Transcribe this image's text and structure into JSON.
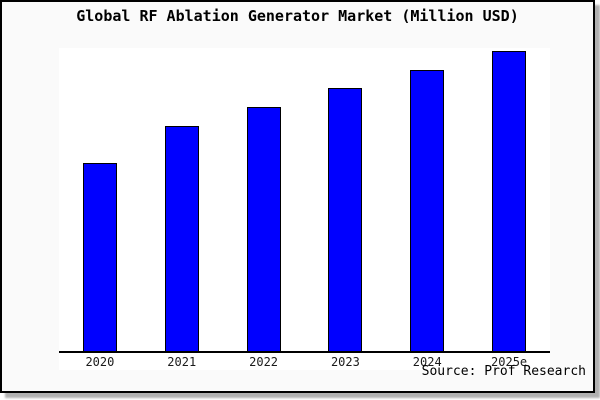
{
  "title": "Global RF Ablation Generator Market (Million USD)",
  "source_credit": "Source: Prof Research",
  "colors": {
    "bar_fill": "#0000ff",
    "bar_border": "#000000",
    "frame_border": "#000000",
    "frame_background": "#fafafa",
    "plot_background": "#ffffff",
    "shadow": "#b0b0b0",
    "text": "#000000"
  },
  "chart_data": {
    "type": "bar",
    "title": "Global RF Ablation Generator Market (Million USD)",
    "categories": [
      "2020",
      "2021",
      "2022",
      "2023",
      "2024",
      "2025e"
    ],
    "values": [
      62.8,
      75.1,
      81.4,
      87.7,
      93.7,
      100
    ],
    "values_note": "y-axis has no tick labels; values are relative bar heights normalized to max = 100",
    "xlabel": "",
    "ylabel": "",
    "ylim": [
      0,
      100.7
    ],
    "grid": false,
    "legend": false,
    "y_axis_shown": false,
    "annotations": [
      "Source: Prof Research"
    ]
  }
}
